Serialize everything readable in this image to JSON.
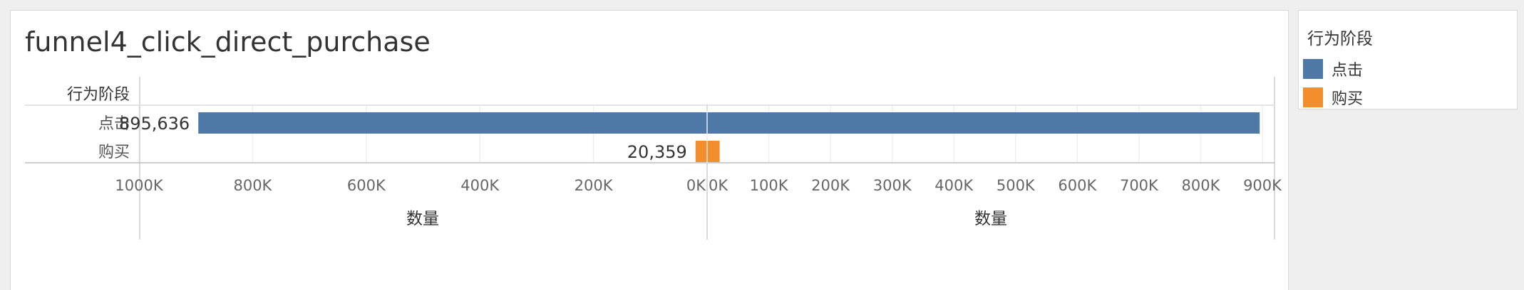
{
  "title": "funnel4_click_direct_purchase",
  "row_header": "行为阶段",
  "legend": {
    "title": "行为阶段",
    "items": [
      {
        "label": "点击",
        "color": "#4e79a7"
      },
      {
        "label": "购买",
        "color": "#f28e2b"
      }
    ]
  },
  "chart_data": {
    "type": "bar",
    "orientation": "horizontal",
    "layout": "funnel-mirrored",
    "categories": [
      "点击",
      "购买"
    ],
    "values": [
      895636,
      20359
    ],
    "value_labels": [
      "895,636",
      "20,359"
    ],
    "colors": [
      "#4e79a7",
      "#f28e2b"
    ],
    "left_axis": {
      "label": "数量",
      "reversed": true,
      "ticks": [
        1000000,
        800000,
        600000,
        400000,
        200000,
        0
      ],
      "tick_labels": [
        "1000K",
        "800K",
        "600K",
        "400K",
        "200K",
        "0K"
      ]
    },
    "right_axis": {
      "label": "数量",
      "ticks": [
        0,
        100000,
        200000,
        300000,
        400000,
        500000,
        600000,
        700000,
        800000,
        900000
      ],
      "tick_labels": [
        "0K",
        "100K",
        "200K",
        "300K",
        "400K",
        "500K",
        "600K",
        "700K",
        "800K",
        "900K"
      ]
    },
    "grid": true
  }
}
